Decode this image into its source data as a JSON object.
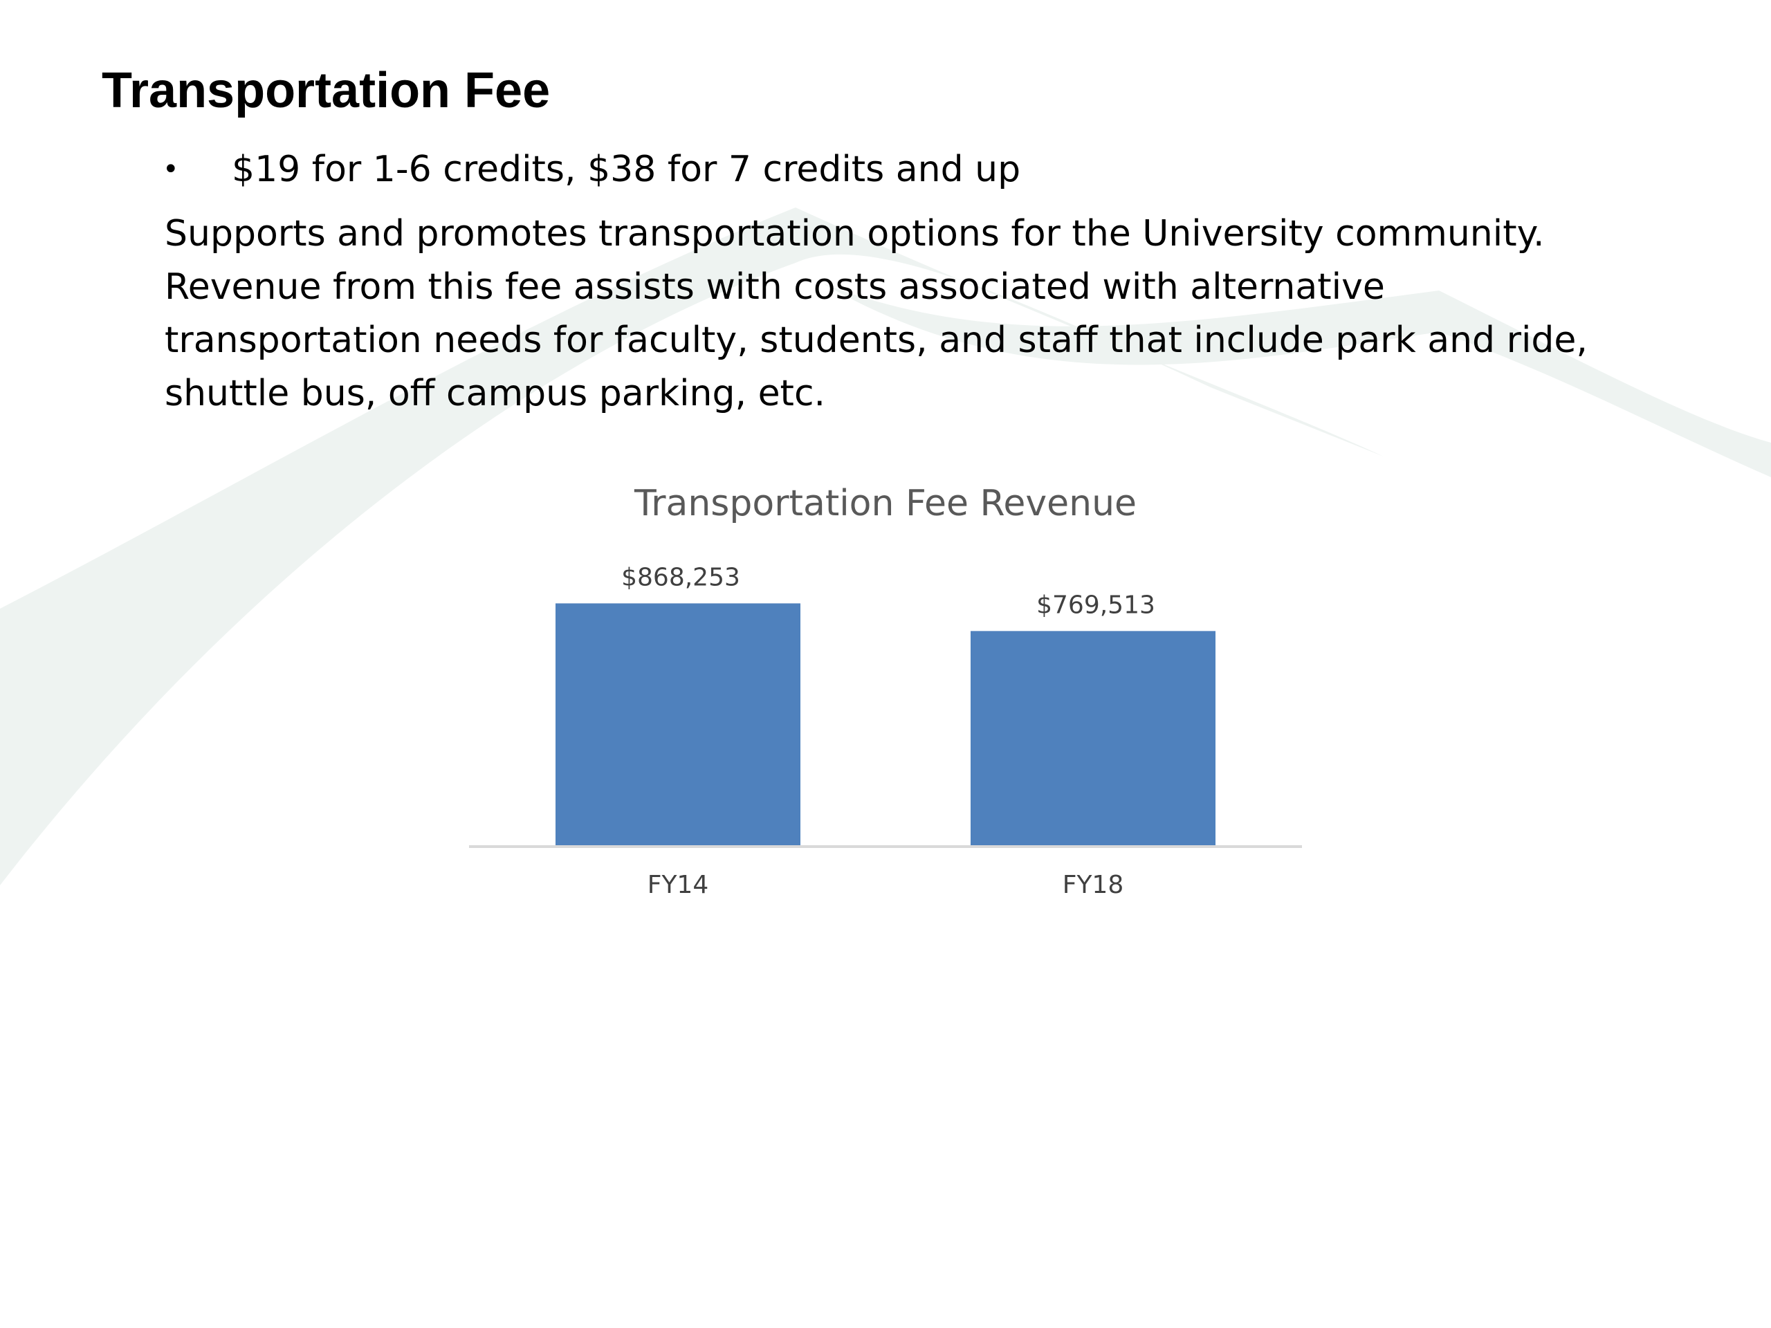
{
  "slide": {
    "title": "Transportation Fee",
    "bullet": "$19 for 1-6 credits, $38 for 7 credits and up",
    "description": "Supports and promotes transportation options for the University community. Revenue from this fee assists with costs associated with alternative transportation needs for faculty, students, and staff that include park and ride, shuttle bus, off campus parking, etc."
  },
  "colors": {
    "bar": "#4f81bd",
    "axis_line": "#d9d9d9",
    "label_text": "#404040",
    "title_text": "#595959",
    "swoosh": "#eef3f1"
  },
  "chart_data": {
    "type": "bar",
    "title": "Transportation Fee Revenue",
    "categories": [
      "FY14",
      "FY18"
    ],
    "values": [
      868253,
      769513
    ],
    "data_labels": [
      "$868,253",
      "$769,513"
    ],
    "xlabel": "",
    "ylabel": "",
    "ylim": [
      0,
      1000000
    ],
    "grid": false,
    "legend": "none"
  }
}
